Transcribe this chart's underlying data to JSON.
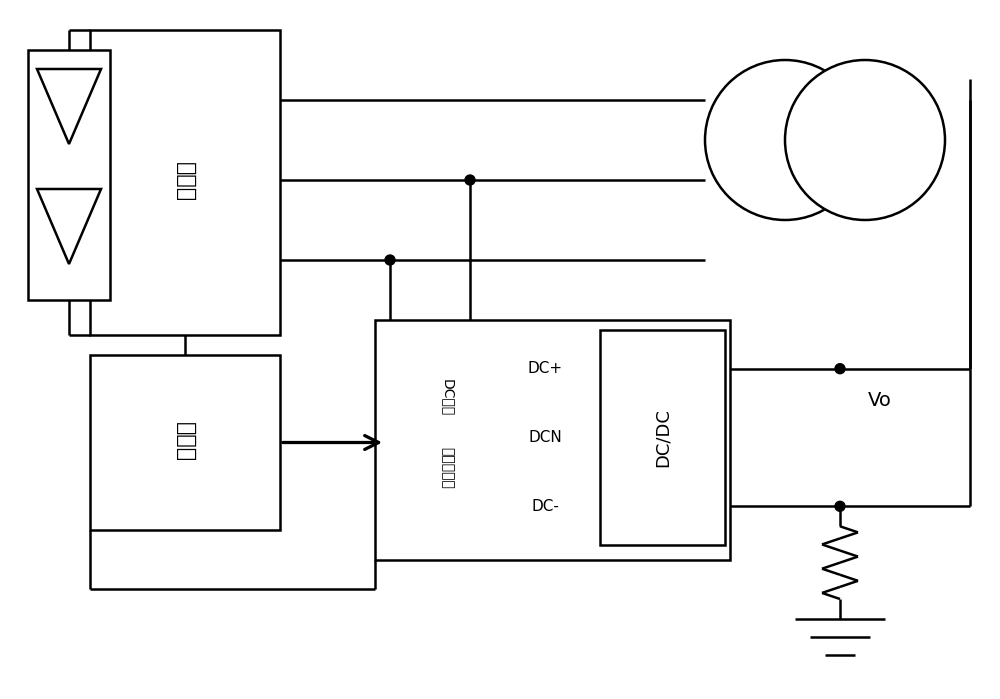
{
  "bg": "#ffffff",
  "lc": "#000000",
  "lw": 1.8,
  "fw": 10.0,
  "fh": 6.99,
  "dpi": 100,
  "label_inverter": "变流器",
  "label_controller": "控制器",
  "label_dc_ctrl_line1": "DC电压中点",
  "label_dc_ctrl_line2": "控制器",
  "label_dcdc": "DC/DC",
  "label_vo": "Vo",
  "label_dcplus": "DC+",
  "label_dcn": "DCN",
  "label_dcminus": "DC-",
  "label_dc": "DC电",
  "label_zhongdian": "压中点",
  "label_kongzhiqi": "控制器"
}
